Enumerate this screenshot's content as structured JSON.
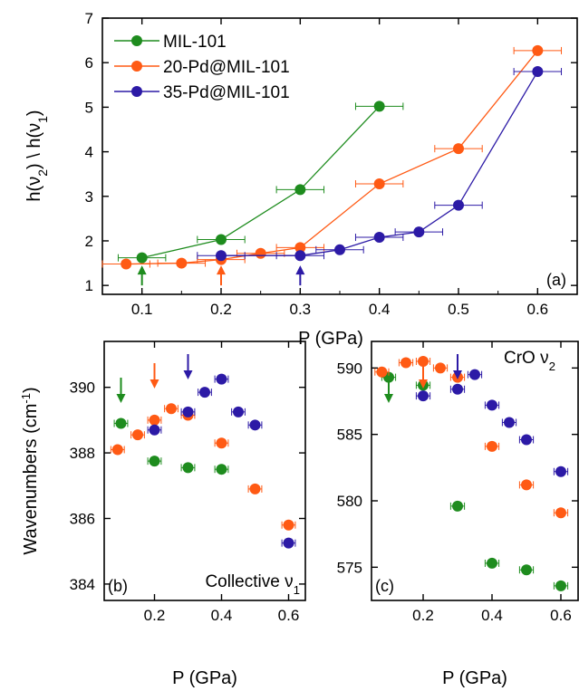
{
  "colors": {
    "MIL-101": "#1e8c1e",
    "20-Pd@MIL-101": "#ff5a14",
    "35-Pd@MIL-101": "#2c1aa6"
  },
  "chart_data": [
    {
      "panel": "(a)",
      "type": "line",
      "xlabel": "P (GPa)",
      "ylabel": "h(ν2) \\ h(ν1)",
      "xlim": [
        0.05,
        0.65
      ],
      "ylim": [
        0.8,
        7
      ],
      "xticks": [
        "0.1",
        "0.2",
        "0.3",
        "0.4",
        "0.5",
        "0.6"
      ],
      "yticks": [
        "1",
        "2",
        "3",
        "4",
        "5",
        "6",
        "7"
      ],
      "legend_position": "top-left",
      "series": [
        {
          "name": "MIL-101",
          "color": "#1e8c1e",
          "x": [
            0.1,
            0.2,
            0.3,
            0.4
          ],
          "y": [
            1.62,
            2.03,
            3.15,
            5.02
          ],
          "xerr": [
            0.03,
            0.03,
            0.03,
            0.03
          ]
        },
        {
          "name": "20-Pd@MIL-101",
          "color": "#ff5a14",
          "x": [
            0.08,
            0.15,
            0.2,
            0.25,
            0.3,
            0.4,
            0.5,
            0.6
          ],
          "y": [
            1.48,
            1.5,
            1.58,
            1.72,
            1.85,
            3.28,
            4.07,
            6.27
          ],
          "xerr": [
            0.03,
            0.03,
            0.03,
            0.03,
            0.03,
            0.03,
            0.03,
            0.03
          ]
        },
        {
          "name": "35-Pd@MIL-101",
          "color": "#2c1aa6",
          "x": [
            0.2,
            0.3,
            0.35,
            0.4,
            0.45,
            0.5,
            0.6
          ],
          "y": [
            1.67,
            1.67,
            1.8,
            2.08,
            2.2,
            2.8,
            5.8
          ],
          "xerr": [
            0.03,
            0.03,
            0.03,
            0.03,
            0.03,
            0.03,
            0.03
          ]
        }
      ],
      "arrows": [
        {
          "x": 0.1,
          "color": "#1e8c1e"
        },
        {
          "x": 0.2,
          "color": "#ff5a14"
        },
        {
          "x": 0.3,
          "color": "#2c1aa6"
        }
      ]
    },
    {
      "panel": "(b)",
      "type": "scatter",
      "xlabel": "P (GPa)",
      "ylabel": "Wavenumbers (cm-1)",
      "annotation": "Collective ν1",
      "xlim": [
        0.05,
        0.65
      ],
      "ylim": [
        383.5,
        391.4
      ],
      "xticks": [
        "0.2",
        "0.4",
        "0.6"
      ],
      "yticks": [
        "384",
        "386",
        "388",
        "390"
      ],
      "series": [
        {
          "name": "MIL-101",
          "color": "#1e8c1e",
          "x": [
            0.1,
            0.2,
            0.3,
            0.4
          ],
          "y": [
            388.9,
            387.75,
            387.55,
            387.5
          ]
        },
        {
          "name": "20-Pd@MIL-101",
          "color": "#ff5a14",
          "x": [
            0.09,
            0.15,
            0.2,
            0.25,
            0.3,
            0.4,
            0.5,
            0.6
          ],
          "y": [
            388.1,
            388.55,
            389.0,
            389.35,
            389.15,
            388.3,
            386.9,
            385.8
          ]
        },
        {
          "name": "35-Pd@MIL-101",
          "color": "#2c1aa6",
          "x": [
            0.2,
            0.3,
            0.35,
            0.4,
            0.45,
            0.5,
            0.6
          ],
          "y": [
            388.7,
            389.25,
            389.85,
            390.25,
            389.25,
            388.85,
            385.25
          ]
        }
      ],
      "arrows": [
        {
          "x": 0.1,
          "color": "#1e8c1e"
        },
        {
          "x": 0.2,
          "color": "#ff5a14"
        },
        {
          "x": 0.3,
          "color": "#2c1aa6"
        }
      ]
    },
    {
      "panel": "(c)",
      "type": "scatter",
      "xlabel": "P (GPa)",
      "annotation": "CrO ν2",
      "xlim": [
        0.05,
        0.65
      ],
      "ylim": [
        572.5,
        592
      ],
      "xticks": [
        "0.2",
        "0.4",
        "0.6"
      ],
      "yticks": [
        "575",
        "580",
        "585",
        "590"
      ],
      "series": [
        {
          "name": "MIL-101",
          "color": "#1e8c1e",
          "x": [
            0.1,
            0.2,
            0.3,
            0.4,
            0.5,
            0.6
          ],
          "y": [
            589.3,
            588.7,
            579.6,
            575.3,
            574.8,
            573.6
          ]
        },
        {
          "name": "20-Pd@MIL-101",
          "color": "#ff5a14",
          "x": [
            0.08,
            0.15,
            0.2,
            0.25,
            0.3,
            0.4,
            0.5,
            0.6
          ],
          "y": [
            589.7,
            590.4,
            590.5,
            590.0,
            589.3,
            584.1,
            581.2,
            579.1
          ]
        },
        {
          "name": "35-Pd@MIL-101",
          "color": "#2c1aa6",
          "x": [
            0.2,
            0.3,
            0.35,
            0.4,
            0.45,
            0.5,
            0.6
          ],
          "y": [
            587.9,
            588.4,
            589.5,
            587.2,
            585.9,
            584.6,
            582.2
          ]
        }
      ],
      "arrows": [
        {
          "x": 0.1,
          "color": "#1e8c1e"
        },
        {
          "x": 0.2,
          "color": "#ff5a14"
        },
        {
          "x": 0.3,
          "color": "#2c1aa6"
        }
      ]
    }
  ]
}
